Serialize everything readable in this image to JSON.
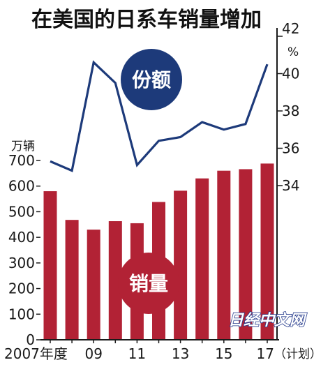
{
  "title": "在美国的日系车销量增加",
  "watermark": "日经中文网",
  "chart_data": {
    "type": "bar+line",
    "x": [
      2007,
      2008,
      2009,
      2010,
      2011,
      2012,
      2013,
      2014,
      2015,
      2016,
      2017
    ],
    "x_tick_labels": [
      "2007年度",
      "09",
      "11",
      "13",
      "15",
      "17",
      "（计划）"
    ],
    "series": [
      {
        "name": "销量",
        "type": "bar",
        "axis": "left",
        "unit": "万辆",
        "color": "#b22235",
        "values": [
          580,
          468,
          430,
          463,
          455,
          538,
          582,
          630,
          660,
          666,
          688
        ]
      },
      {
        "name": "份额",
        "type": "line",
        "axis": "right",
        "unit": "%",
        "color": "#1d3a7a",
        "values": [
          35.3,
          34.8,
          40.6,
          39.5,
          35.1,
          36.4,
          36.6,
          37.4,
          37.0,
          37.3,
          40.5
        ]
      }
    ],
    "left_axis": {
      "unit_label": "万辆",
      "range": [
        0,
        700
      ],
      "ticks": [
        0,
        100,
        200,
        300,
        400,
        500,
        600,
        700
      ]
    },
    "right_axis": {
      "unit_label": "%",
      "range": [
        34,
        42
      ],
      "ticks": [
        34,
        36,
        38,
        40,
        42
      ]
    },
    "grid": false,
    "legend": "inline badges"
  }
}
